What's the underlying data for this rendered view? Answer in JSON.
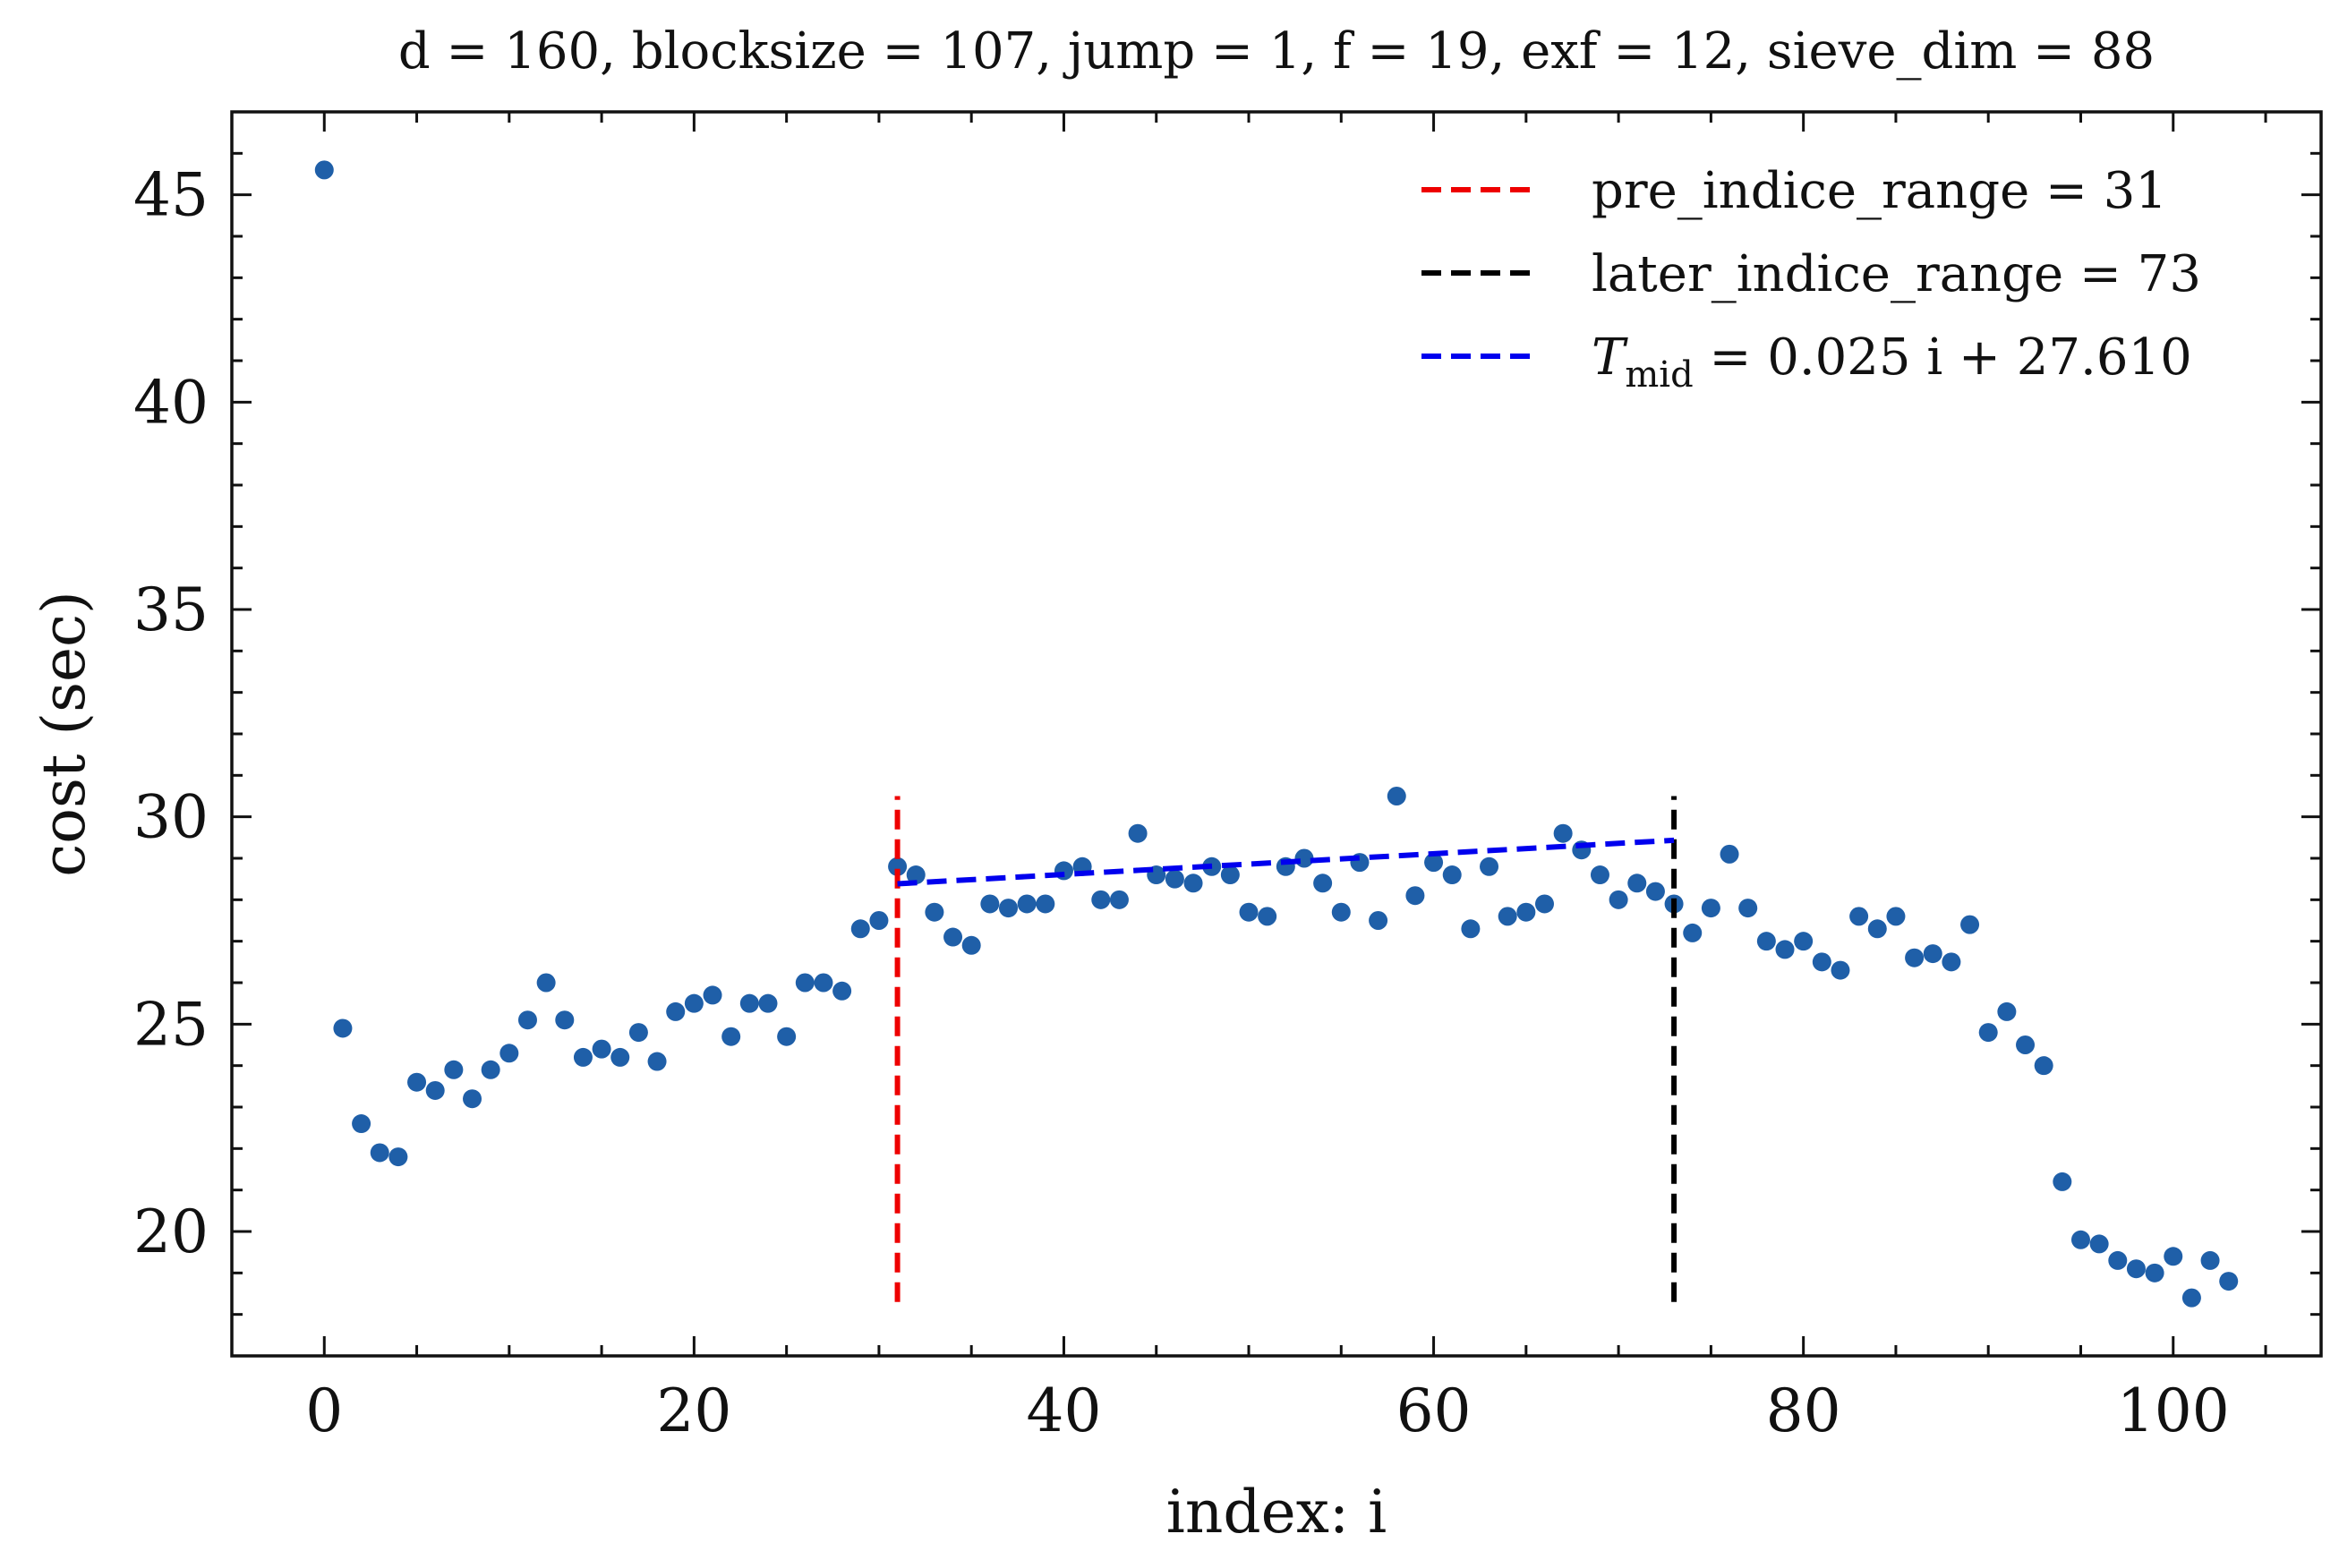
{
  "chart_data": {
    "type": "scatter",
    "title": "d = 160, blocksize = 107, jump = 1, f = 19, exf = 12, sieve_dim = 88",
    "xlabel": "index: i",
    "ylabel": "cost (sec)",
    "xlim": [
      -5,
      108
    ],
    "ylim": [
      17,
      47
    ],
    "xticks": [
      0,
      20,
      40,
      60,
      80,
      100
    ],
    "yticks": [
      20,
      25,
      30,
      35,
      40,
      45
    ],
    "x_minor_step": 5,
    "y_minor_step": 1,
    "point_color": "#1f5fa8",
    "legend_position": "top-right",
    "series": [
      {
        "name": "cost",
        "x": [
          0,
          1,
          2,
          3,
          4,
          5,
          6,
          7,
          8,
          9,
          10,
          11,
          12,
          13,
          14,
          15,
          16,
          17,
          18,
          19,
          20,
          21,
          22,
          23,
          24,
          25,
          26,
          27,
          28,
          29,
          30,
          31,
          32,
          33,
          34,
          35,
          36,
          37,
          38,
          39,
          40,
          41,
          42,
          43,
          44,
          45,
          46,
          47,
          48,
          49,
          50,
          51,
          52,
          53,
          54,
          55,
          56,
          57,
          58,
          59,
          60,
          61,
          62,
          63,
          64,
          65,
          66,
          67,
          68,
          69,
          70,
          71,
          72,
          73,
          74,
          75,
          76,
          77,
          78,
          79,
          80,
          81,
          82,
          83,
          84,
          85,
          86,
          87,
          88,
          89,
          90,
          91,
          92,
          93,
          94,
          95,
          96,
          97,
          98,
          99,
          100,
          101,
          102,
          103
        ],
        "y": [
          45.6,
          24.9,
          22.6,
          21.9,
          21.8,
          23.6,
          23.4,
          23.9,
          23.2,
          23.9,
          24.3,
          25.1,
          26.0,
          25.1,
          24.2,
          24.4,
          24.2,
          24.8,
          24.1,
          25.3,
          25.5,
          25.7,
          24.7,
          25.5,
          25.5,
          24.7,
          26.0,
          26.0,
          25.8,
          27.3,
          27.5,
          28.8,
          28.6,
          27.7,
          27.1,
          26.9,
          27.9,
          27.8,
          27.9,
          27.9,
          28.7,
          28.8,
          28.0,
          28.0,
          29.6,
          28.6,
          28.5,
          28.4,
          28.8,
          28.6,
          27.7,
          27.6,
          28.8,
          29.0,
          28.4,
          27.7,
          28.9,
          27.5,
          30.5,
          28.1,
          28.9,
          28.6,
          27.3,
          28.8,
          27.6,
          27.7,
          27.9,
          29.6,
          29.2,
          28.6,
          28.0,
          28.4,
          28.2,
          27.9,
          27.2,
          27.8,
          29.1,
          27.8,
          27.0,
          26.8,
          27.0,
          26.5,
          26.3,
          27.6,
          27.3,
          27.6,
          26.6,
          26.7,
          26.5,
          27.4,
          24.8,
          25.3,
          24.5,
          24.0,
          21.2,
          19.8,
          19.7,
          19.3,
          19.1,
          19.0,
          19.4,
          18.4,
          19.3,
          18.8
        ]
      }
    ],
    "lines": [
      {
        "name": "pre_indice_range = 31",
        "kind": "vertical",
        "x": 31,
        "y_range": [
          18.3,
          30.5
        ],
        "color": "#ee0000",
        "dashed": true
      },
      {
        "name": "later_indice_range = 73",
        "kind": "vertical",
        "x": 73,
        "y_range": [
          18.3,
          30.5
        ],
        "color": "#000000",
        "dashed": true
      },
      {
        "name_prefix": "T",
        "name_sub": "mid",
        "name": " = 0.025 i + 27.610",
        "kind": "fit",
        "x_range": [
          31,
          73
        ],
        "slope": 0.025,
        "intercept": 27.61,
        "color": "#0000ee",
        "dashed": true
      }
    ]
  }
}
